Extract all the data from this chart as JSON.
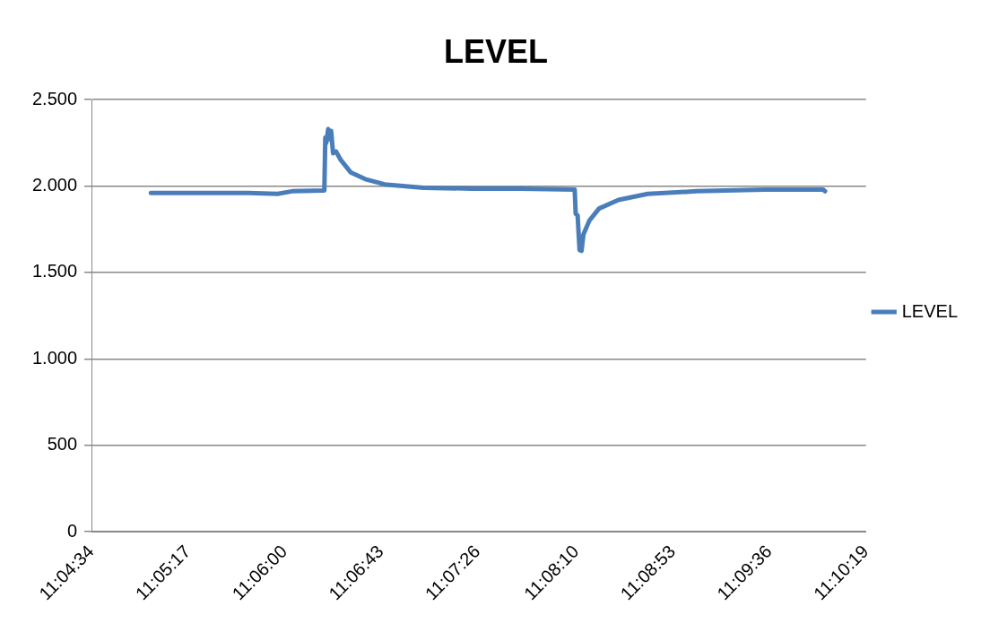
{
  "chart_data": {
    "type": "line",
    "title": "LEVEL",
    "x": [
      11.08346,
      11.09552,
      11.09913,
      11.10094,
      11.10492,
      11.10504,
      11.10516,
      11.1054,
      11.10564,
      11.10576,
      11.106,
      11.10637,
      11.10697,
      11.10817,
      11.10998,
      11.11239,
      11.11721,
      11.12324,
      11.12927,
      11.1359,
      11.13602,
      11.13626,
      11.1365,
      11.13674,
      11.13698,
      11.13771,
      11.13891,
      11.14132,
      11.14494,
      11.15097,
      11.1594,
      11.16664,
      11.16688
    ],
    "series": [
      {
        "name": "LEVEL",
        "color": "#4a7ebb",
        "values": [
          1960,
          1960,
          1955,
          1970,
          1975,
          2280,
          2250,
          2330,
          2270,
          2320,
          2190,
          2200,
          2150,
          2080,
          2040,
          2010,
          1990,
          1985,
          1985,
          1980,
          1840,
          1830,
          1630,
          1625,
          1720,
          1800,
          1870,
          1920,
          1955,
          1970,
          1980,
          1980,
          1970
        ]
      }
    ],
    "xlim": [
      11.076111,
      11.171944
    ],
    "xticks": [
      {
        "value": 11.076111,
        "label": "11:04:34"
      },
      {
        "value": 11.088056,
        "label": "11:05:17"
      },
      {
        "value": 11.1,
        "label": "11:06:00"
      },
      {
        "value": 11.111944,
        "label": "11:06:43"
      },
      {
        "value": 11.123889,
        "label": "11:07:26"
      },
      {
        "value": 11.136111,
        "label": "11:08:10"
      },
      {
        "value": 11.148056,
        "label": "11:08:53"
      },
      {
        "value": 11.16,
        "label": "11:09:36"
      },
      {
        "value": 11.171944,
        "label": "11:10:19"
      }
    ],
    "ylim": [
      0,
      2500
    ],
    "yticks": [
      0,
      500,
      {
        "value": 1000,
        "label": "1.000"
      },
      {
        "value": 1500,
        "label": "1.500"
      },
      {
        "value": 2000,
        "label": "2.000"
      },
      {
        "value": 2500,
        "label": "2.500"
      }
    ],
    "grid": "y",
    "legend": "right",
    "marker": "none",
    "line_style": "solid"
  }
}
